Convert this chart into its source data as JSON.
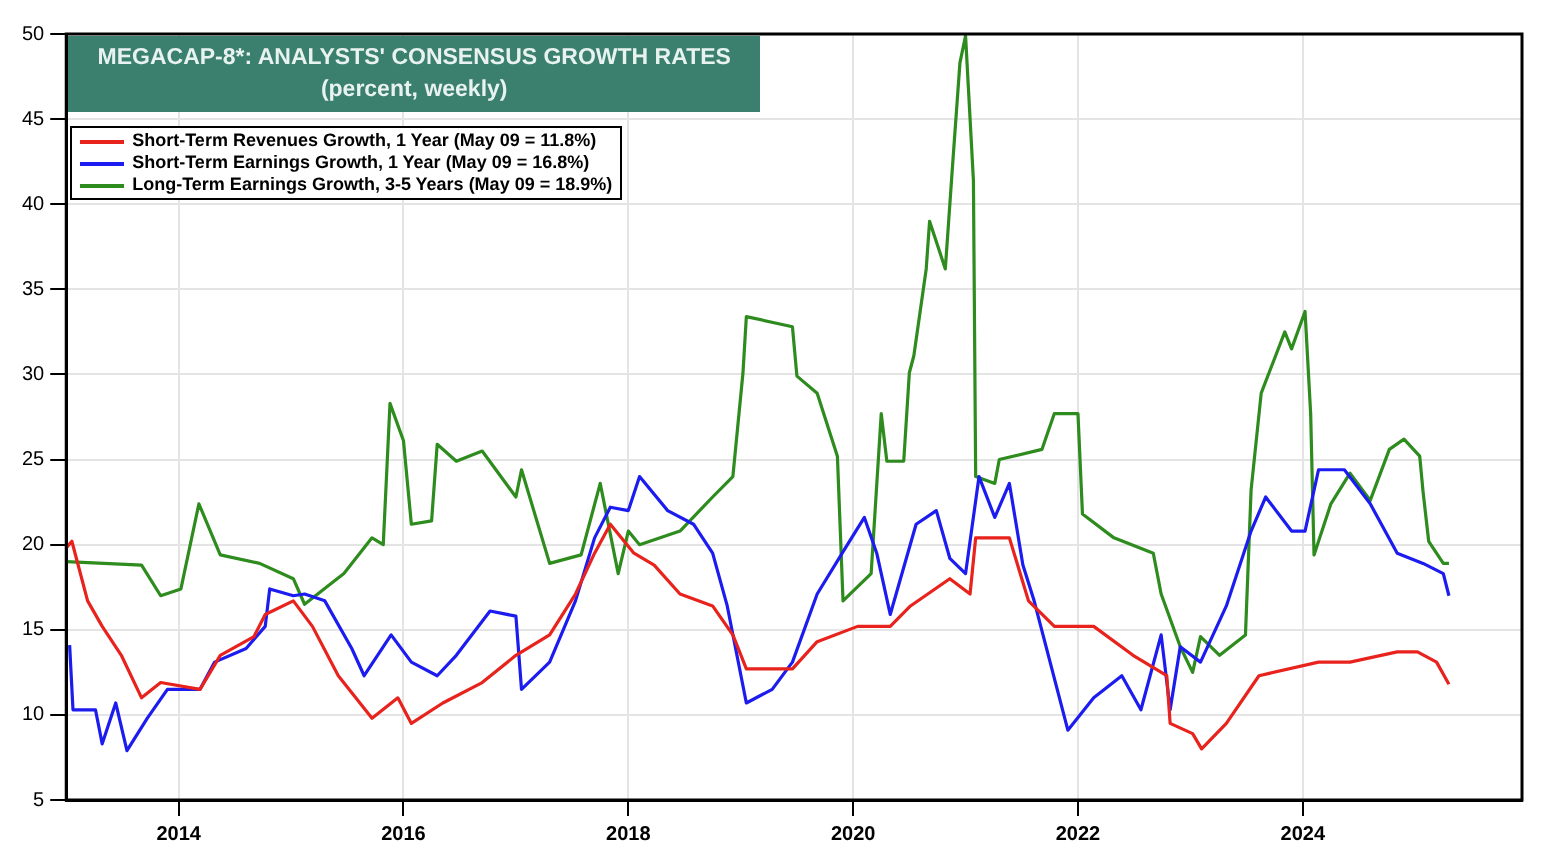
{
  "chart_data": {
    "type": "line",
    "title": "MEGACAP-8*: ANALYSTS' CONSENSUS GROWTH RATES",
    "subtitle": "(percent, weekly)",
    "xlim": [
      2013,
      2025.95
    ],
    "xticks": [
      2014,
      2016,
      2018,
      2020,
      2022,
      2024
    ],
    "ylim": [
      5,
      50
    ],
    "yticks": [
      5,
      10,
      15,
      20,
      25,
      30,
      35,
      40,
      45,
      50
    ],
    "grid": true,
    "legend": "top left",
    "marker": "none",
    "line_style": "solid",
    "series": [
      {
        "name": "Short-Term Revenues Growth, 1 Year (May 09 = 11.8%)",
        "color": "#e8221c",
        "x": [
          2013.0,
          2013.05,
          2013.19,
          2013.32,
          2013.49,
          2013.67,
          2013.84,
          2014.19,
          2014.37,
          2014.67,
          2014.77,
          2015.02,
          2015.19,
          2015.42,
          2015.72,
          2015.95,
          2016.07,
          2016.35,
          2016.7,
          2017.0,
          2017.3,
          2017.53,
          2017.7,
          2017.84,
          2018.05,
          2018.23,
          2018.46,
          2018.75,
          2018.93,
          2019.05,
          2019.33,
          2019.46,
          2019.68,
          2020.04,
          2020.33,
          2020.51,
          2020.86,
          2021.04,
          2021.09,
          2021.39,
          2021.56,
          2021.79,
          2022.14,
          2022.49,
          2022.79,
          2022.82,
          2023.02,
          2023.1,
          2023.32,
          2023.61,
          2024.14,
          2024.42,
          2024.84,
          2025.02,
          2025.19,
          2025.3
        ],
        "values": [
          19.8,
          20.2,
          16.7,
          15.2,
          13.5,
          11.0,
          11.9,
          11.5,
          13.5,
          14.6,
          15.9,
          16.7,
          15.2,
          12.3,
          9.8,
          11.0,
          9.5,
          10.7,
          11.9,
          13.5,
          14.7,
          17.1,
          19.5,
          21.2,
          19.5,
          18.8,
          17.1,
          16.4,
          14.7,
          12.7,
          12.7,
          12.7,
          14.3,
          15.2,
          15.2,
          16.4,
          18.0,
          17.1,
          20.4,
          20.4,
          16.7,
          15.2,
          15.2,
          13.5,
          12.3,
          9.5,
          8.9,
          8.0,
          9.5,
          12.3,
          13.1,
          13.1,
          13.7,
          13.7,
          13.1,
          11.8
        ]
      },
      {
        "name": "Short-Term Earnings Growth, 1 Year (May 09 = 16.8%)",
        "color": "#1c1cf0",
        "x": [
          2013.03,
          2013.06,
          2013.26,
          2013.32,
          2013.44,
          2013.54,
          2013.72,
          2013.9,
          2014.19,
          2014.32,
          2014.6,
          2014.77,
          2014.81,
          2015.02,
          2015.12,
          2015.3,
          2015.54,
          2015.65,
          2015.89,
          2016.07,
          2016.3,
          2016.47,
          2016.77,
          2017.0,
          2017.05,
          2017.3,
          2017.53,
          2017.7,
          2017.84,
          2018.0,
          2018.1,
          2018.35,
          2018.58,
          2018.75,
          2018.88,
          2019.05,
          2019.28,
          2019.46,
          2019.68,
          2019.93,
          2020.1,
          2020.21,
          2020.33,
          2020.56,
          2020.74,
          2020.86,
          2021.0,
          2021.12,
          2021.26,
          2021.39,
          2021.51,
          2021.61,
          2021.91,
          2022.14,
          2022.39,
          2022.56,
          2022.74,
          2022.82,
          2022.91,
          2023.09,
          2023.32,
          2023.54,
          2023.67,
          2023.9,
          2024.02,
          2024.14,
          2024.37,
          2024.6,
          2024.84,
          2025.07,
          2025.25,
          2025.3
        ],
        "values": [
          14.1,
          10.3,
          10.3,
          8.3,
          10.7,
          7.9,
          9.8,
          11.5,
          11.5,
          13.1,
          13.9,
          15.2,
          17.4,
          17.0,
          17.1,
          16.7,
          13.9,
          12.3,
          14.7,
          13.1,
          12.3,
          13.5,
          16.1,
          15.8,
          11.5,
          13.1,
          16.7,
          20.4,
          22.2,
          22.0,
          24.0,
          22.0,
          21.2,
          19.5,
          16.4,
          10.7,
          11.5,
          13.1,
          17.1,
          19.8,
          21.6,
          19.5,
          15.9,
          21.2,
          22.0,
          19.2,
          18.3,
          24.0,
          21.6,
          23.6,
          18.8,
          16.7,
          9.1,
          11.0,
          12.3,
          10.3,
          14.7,
          10.3,
          14.0,
          13.1,
          16.4,
          20.8,
          22.8,
          20.8,
          20.8,
          24.4,
          24.4,
          22.4,
          19.5,
          18.9,
          18.3,
          17.0
        ]
      },
      {
        "name": "Long-Term Earnings Growth, 3-5 Years (May 09 = 18.9%)",
        "color": "#2e8b1e",
        "x": [
          2013.0,
          2013.67,
          2013.84,
          2014.02,
          2014.18,
          2014.37,
          2014.72,
          2015.02,
          2015.12,
          2015.47,
          2015.72,
          2015.82,
          2015.88,
          2016.0,
          2016.07,
          2016.25,
          2016.3,
          2016.47,
          2016.7,
          2017.0,
          2017.05,
          2017.3,
          2017.58,
          2017.75,
          2017.91,
          2018.0,
          2018.1,
          2018.46,
          2018.75,
          2018.93,
          2019.02,
          2019.05,
          2019.46,
          2019.5,
          2019.68,
          2019.86,
          2019.91,
          2020.16,
          2020.25,
          2020.3,
          2020.45,
          2020.5,
          2020.54,
          2020.65,
          2020.68,
          2020.82,
          2020.89,
          2020.95,
          2021.0,
          2021.07,
          2021.09,
          2021.26,
          2021.3,
          2021.68,
          2021.79,
          2022.0,
          2022.04,
          2022.32,
          2022.67,
          2022.74,
          2022.91,
          2023.02,
          2023.09,
          2023.26,
          2023.49,
          2023.54,
          2023.63,
          2023.84,
          2023.9,
          2024.02,
          2024.07,
          2024.1,
          2024.25,
          2024.42,
          2024.6,
          2024.77,
          2024.9,
          2025.04,
          2025.07,
          2025.12,
          2025.25,
          2025.3
        ],
        "values": [
          19.0,
          18.8,
          17.0,
          17.4,
          22.4,
          19.4,
          18.9,
          18.0,
          16.5,
          18.3,
          20.4,
          20.0,
          28.3,
          26.1,
          21.2,
          21.4,
          25.9,
          24.9,
          25.5,
          22.8,
          24.4,
          18.9,
          19.4,
          23.6,
          18.3,
          20.8,
          20.0,
          20.8,
          22.8,
          24.0,
          30.1,
          33.4,
          32.8,
          29.9,
          28.9,
          25.2,
          16.7,
          18.3,
          27.7,
          24.9,
          24.9,
          30.1,
          31.1,
          36.2,
          39.0,
          36.2,
          42.8,
          48.3,
          49.9,
          41.4,
          24.0,
          23.6,
          25.0,
          25.6,
          27.7,
          27.7,
          21.8,
          20.4,
          19.5,
          17.1,
          14.0,
          12.5,
          14.6,
          13.5,
          14.7,
          23.2,
          28.9,
          32.5,
          31.5,
          33.7,
          27.7,
          19.4,
          22.4,
          24.2,
          22.6,
          25.6,
          26.2,
          25.2,
          23.1,
          20.2,
          18.9,
          18.9
        ]
      }
    ]
  }
}
